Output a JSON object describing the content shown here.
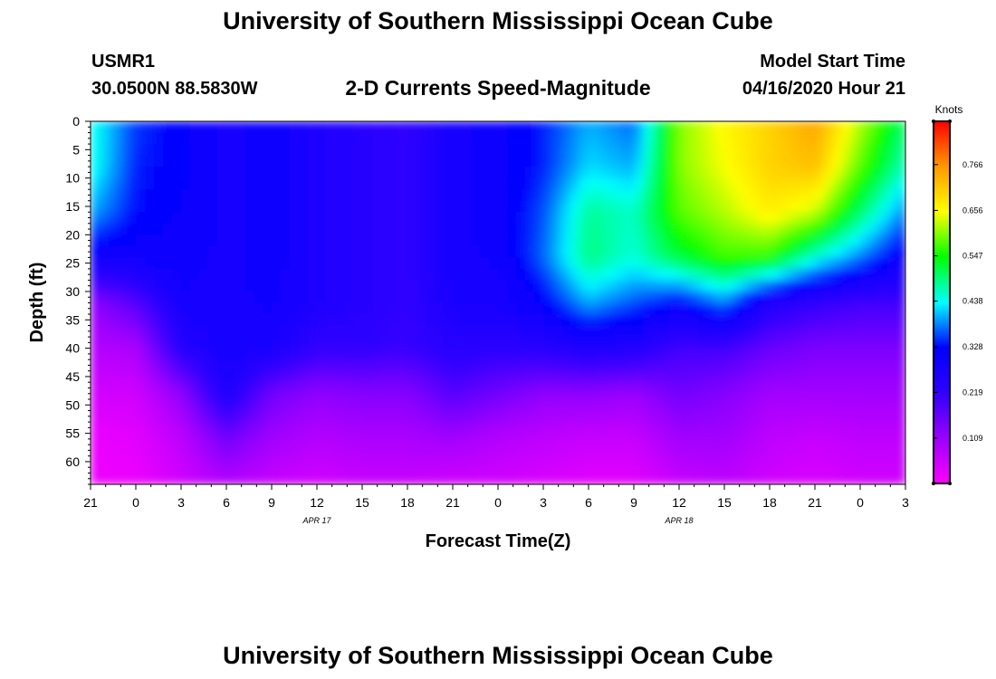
{
  "header": {
    "title": "University of Southern Mississippi Ocean Cube",
    "station_id": "USMR1",
    "coordinates": "30.0500N 88.5830W",
    "plot_title": "2-D Currents Speed-Magnitude",
    "model_start_label": "Model Start Time",
    "model_start_value": "04/16/2020 Hour 21"
  },
  "footer": {
    "title": "University of Southern Mississippi Ocean Cube"
  },
  "chart_data": {
    "type": "heatmap",
    "title": "2-D Currents Speed-Magnitude",
    "xlabel": "Forecast Time(Z)",
    "ylabel": "Depth (ft)",
    "x_ticks": [
      "21",
      "0",
      "3",
      "6",
      "9",
      "12",
      "15",
      "18",
      "21",
      "0",
      "3",
      "6",
      "9",
      "12",
      "15",
      "18",
      "21",
      "0",
      "3"
    ],
    "date_labels": [
      {
        "tick_index": 5,
        "label": "APR 17"
      },
      {
        "tick_index": 13,
        "label": "APR 18"
      }
    ],
    "x_hours_range": [
      0,
      54
    ],
    "y_ticks": [
      0,
      5,
      10,
      15,
      20,
      25,
      30,
      35,
      40,
      45,
      50,
      55,
      60
    ],
    "ylim": [
      0,
      64
    ],
    "colorbar": {
      "title": "Knots",
      "ticks": [
        0.109,
        0.219,
        0.328,
        0.438,
        0.547,
        0.656,
        0.766
      ],
      "range": [
        0.0,
        0.87
      ],
      "colors": [
        "#ff00ff",
        "#9b00ff",
        "#3000ff",
        "#0000ff",
        "#00ffff",
        "#00ff00",
        "#ffff00",
        "#ff9900",
        "#ff0000"
      ]
    },
    "time_hours": [
      0,
      3,
      6,
      9,
      12,
      15,
      18,
      21,
      24,
      27,
      30,
      33,
      36,
      39,
      42,
      45,
      48,
      51,
      54
    ],
    "depth_ft": [
      0,
      8,
      16,
      24,
      32,
      40,
      48,
      56,
      64
    ],
    "speed_knots": [
      [
        0.45,
        0.45,
        0.4,
        0.3,
        0.12,
        0.08,
        0.05,
        0.02,
        0.02
      ],
      [
        0.35,
        0.34,
        0.33,
        0.3,
        0.18,
        0.09,
        0.05,
        0.03,
        0.02
      ],
      [
        0.32,
        0.32,
        0.31,
        0.3,
        0.28,
        0.24,
        0.12,
        0.07,
        0.05
      ],
      [
        0.28,
        0.28,
        0.28,
        0.28,
        0.28,
        0.28,
        0.26,
        0.15,
        0.08
      ],
      [
        0.3,
        0.3,
        0.3,
        0.3,
        0.29,
        0.27,
        0.15,
        0.1,
        0.06
      ],
      [
        0.26,
        0.26,
        0.26,
        0.26,
        0.26,
        0.22,
        0.12,
        0.08,
        0.05
      ],
      [
        0.24,
        0.24,
        0.24,
        0.24,
        0.24,
        0.22,
        0.13,
        0.09,
        0.06
      ],
      [
        0.22,
        0.22,
        0.22,
        0.22,
        0.22,
        0.21,
        0.13,
        0.09,
        0.06
      ],
      [
        0.28,
        0.28,
        0.28,
        0.28,
        0.27,
        0.24,
        0.18,
        0.1,
        0.05
      ],
      [
        0.3,
        0.3,
        0.3,
        0.29,
        0.27,
        0.23,
        0.15,
        0.08,
        0.05
      ],
      [
        0.34,
        0.34,
        0.36,
        0.37,
        0.32,
        0.24,
        0.12,
        0.07,
        0.04
      ],
      [
        0.4,
        0.42,
        0.48,
        0.49,
        0.4,
        0.26,
        0.12,
        0.06,
        0.03
      ],
      [
        0.37,
        0.4,
        0.46,
        0.45,
        0.36,
        0.25,
        0.11,
        0.06,
        0.03
      ],
      [
        0.6,
        0.6,
        0.58,
        0.52,
        0.32,
        0.2,
        0.15,
        0.1,
        0.06
      ],
      [
        0.66,
        0.65,
        0.62,
        0.57,
        0.38,
        0.2,
        0.13,
        0.1,
        0.07
      ],
      [
        0.7,
        0.7,
        0.67,
        0.56,
        0.25,
        0.16,
        0.1,
        0.07,
        0.05
      ],
      [
        0.75,
        0.72,
        0.63,
        0.45,
        0.22,
        0.14,
        0.1,
        0.06,
        0.04
      ],
      [
        0.62,
        0.58,
        0.5,
        0.38,
        0.2,
        0.14,
        0.1,
        0.07,
        0.05
      ],
      [
        0.5,
        0.46,
        0.38,
        0.3,
        0.2,
        0.14,
        0.1,
        0.07,
        0.05
      ]
    ]
  }
}
